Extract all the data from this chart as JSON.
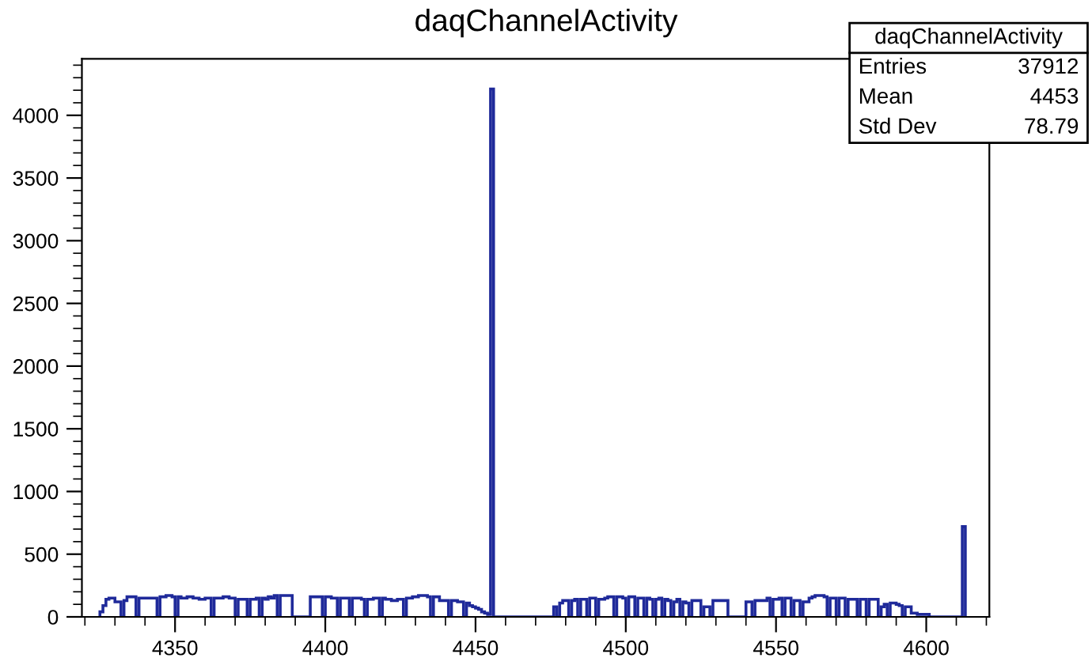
{
  "chart_data": {
    "type": "histogram",
    "title": "daqChannelActivity",
    "bins": [
      4325,
      4326,
      4327,
      4328,
      4329,
      4330,
      4331,
      4332,
      4333,
      4334,
      4335,
      4336,
      4337,
      4338,
      4339,
      4340,
      4341,
      4342,
      4343,
      4344,
      4345,
      4346,
      4347,
      4348,
      4349,
      4350,
      4351,
      4352,
      4353,
      4354,
      4355,
      4356,
      4357,
      4358,
      4359,
      4360,
      4361,
      4362,
      4363,
      4364,
      4365,
      4366,
      4367,
      4368,
      4369,
      4370,
      4371,
      4372,
      4373,
      4374,
      4375,
      4376,
      4377,
      4378,
      4379,
      4380,
      4381,
      4382,
      4383,
      4384,
      4385,
      4386,
      4387,
      4388,
      4389,
      4390,
      4391,
      4392,
      4393,
      4394,
      4395,
      4396,
      4397,
      4398,
      4399,
      4400,
      4401,
      4402,
      4403,
      4404,
      4405,
      4406,
      4407,
      4408,
      4409,
      4410,
      4411,
      4412,
      4413,
      4414,
      4415,
      4416,
      4417,
      4418,
      4419,
      4420,
      4421,
      4422,
      4423,
      4424,
      4425,
      4426,
      4427,
      4428,
      4429,
      4430,
      4431,
      4432,
      4433,
      4434,
      4435,
      4436,
      4437,
      4438,
      4439,
      4440,
      4441,
      4442,
      4443,
      4444,
      4445,
      4446,
      4447,
      4448,
      4449,
      4450,
      4451,
      4452,
      4453,
      4454,
      4455,
      4456,
      4457,
      4458,
      4459,
      4460,
      4461,
      4462,
      4463,
      4464,
      4465,
      4466,
      4467,
      4468,
      4469,
      4470,
      4471,
      4472,
      4473,
      4474,
      4475,
      4476,
      4477,
      4478,
      4479,
      4480,
      4481,
      4482,
      4483,
      4484,
      4485,
      4486,
      4487,
      4488,
      4489,
      4490,
      4491,
      4492,
      4493,
      4494,
      4495,
      4496,
      4497,
      4498,
      4499,
      4500,
      4501,
      4502,
      4503,
      4504,
      4505,
      4506,
      4507,
      4508,
      4509,
      4510,
      4511,
      4512,
      4513,
      4514,
      4515,
      4516,
      4517,
      4518,
      4519,
      4520,
      4521,
      4522,
      4523,
      4524,
      4525,
      4526,
      4527,
      4528,
      4529,
      4530,
      4531,
      4532,
      4533,
      4534,
      4535,
      4536,
      4537,
      4538,
      4539,
      4540,
      4541,
      4542,
      4543,
      4544,
      4545,
      4546,
      4547,
      4548,
      4549,
      4550,
      4551,
      4552,
      4553,
      4554,
      4555,
      4556,
      4557,
      4558,
      4559,
      4560,
      4561,
      4562,
      4563,
      4564,
      4565,
      4566,
      4567,
      4568,
      4569,
      4570,
      4571,
      4572,
      4573,
      4574,
      4575,
      4576,
      4577,
      4578,
      4579,
      4580,
      4581,
      4582,
      4583,
      4584,
      4585,
      4586,
      4587,
      4588,
      4589,
      4590,
      4591,
      4592,
      4593,
      4594,
      4595,
      4596,
      4597,
      4598,
      4599,
      4600,
      4601,
      4602,
      4603,
      4604,
      4605,
      4606,
      4607,
      4608,
      4609,
      4610,
      4611,
      4612,
      4613
    ],
    "values": [
      40,
      90,
      140,
      150,
      150,
      120,
      120,
      0,
      130,
      160,
      160,
      160,
      0,
      150,
      150,
      150,
      150,
      150,
      150,
      0,
      160,
      160,
      170,
      170,
      160,
      0,
      160,
      150,
      150,
      160,
      160,
      150,
      150,
      140,
      140,
      150,
      150,
      0,
      150,
      150,
      150,
      160,
      160,
      150,
      150,
      0,
      140,
      140,
      140,
      0,
      140,
      140,
      150,
      0,
      150,
      140,
      160,
      150,
      170,
      0,
      170,
      170,
      170,
      170,
      0,
      0,
      0,
      0,
      0,
      0,
      160,
      160,
      160,
      160,
      0,
      160,
      160,
      150,
      150,
      0,
      150,
      150,
      150,
      0,
      150,
      150,
      150,
      140,
      0,
      140,
      140,
      150,
      150,
      0,
      150,
      140,
      140,
      130,
      130,
      140,
      140,
      0,
      150,
      150,
      160,
      160,
      170,
      170,
      170,
      160,
      0,
      160,
      160,
      130,
      130,
      130,
      0,
      130,
      130,
      120,
      120,
      0,
      110,
      90,
      80,
      70,
      60,
      40,
      30,
      20,
      4210,
      0,
      0,
      0,
      0,
      0,
      0,
      0,
      0,
      0,
      0,
      0,
      0,
      0,
      0,
      0,
      0,
      0,
      0,
      0,
      0,
      80,
      0,
      110,
      130,
      130,
      0,
      130,
      140,
      0,
      140,
      140,
      0,
      150,
      150,
      0,
      140,
      140,
      150,
      160,
      160,
      0,
      160,
      160,
      150,
      0,
      160,
      160,
      0,
      150,
      150,
      0,
      150,
      140,
      0,
      140,
      150,
      0,
      140,
      130,
      0,
      120,
      140,
      0,
      120,
      110,
      0,
      130,
      130,
      130,
      0,
      80,
      80,
      0,
      130,
      130,
      130,
      130,
      130,
      0,
      0,
      0,
      0,
      0,
      0,
      120,
      120,
      0,
      130,
      130,
      130,
      130,
      150,
      0,
      140,
      140,
      150,
      0,
      150,
      150,
      0,
      130,
      130,
      0,
      120,
      120,
      150,
      160,
      170,
      170,
      170,
      160,
      0,
      150,
      150,
      0,
      150,
      150,
      0,
      140,
      140,
      140,
      0,
      140,
      140,
      0,
      140,
      140,
      140,
      0,
      80,
      100,
      0,
      110,
      110,
      100,
      90,
      0,
      80,
      80,
      30,
      30,
      20,
      20,
      20,
      20,
      0,
      0,
      0,
      0,
      0,
      0,
      0,
      0,
      0,
      0,
      0,
      720
    ],
    "color": "#1f2a9a",
    "xlim": [
      4319,
      4621
    ],
    "xticks": [
      4350,
      4400,
      4450,
      4500,
      4550,
      4600
    ],
    "ylim": [
      0,
      4450
    ],
    "yticks": [
      0,
      500,
      1000,
      1500,
      2000,
      2500,
      3000,
      3500,
      4000
    ],
    "grid": false,
    "annotations": [
      "daqChannelActivity",
      "Entries",
      "37912",
      "Mean",
      "4453",
      "Std Dev",
      "78.79"
    ]
  }
}
